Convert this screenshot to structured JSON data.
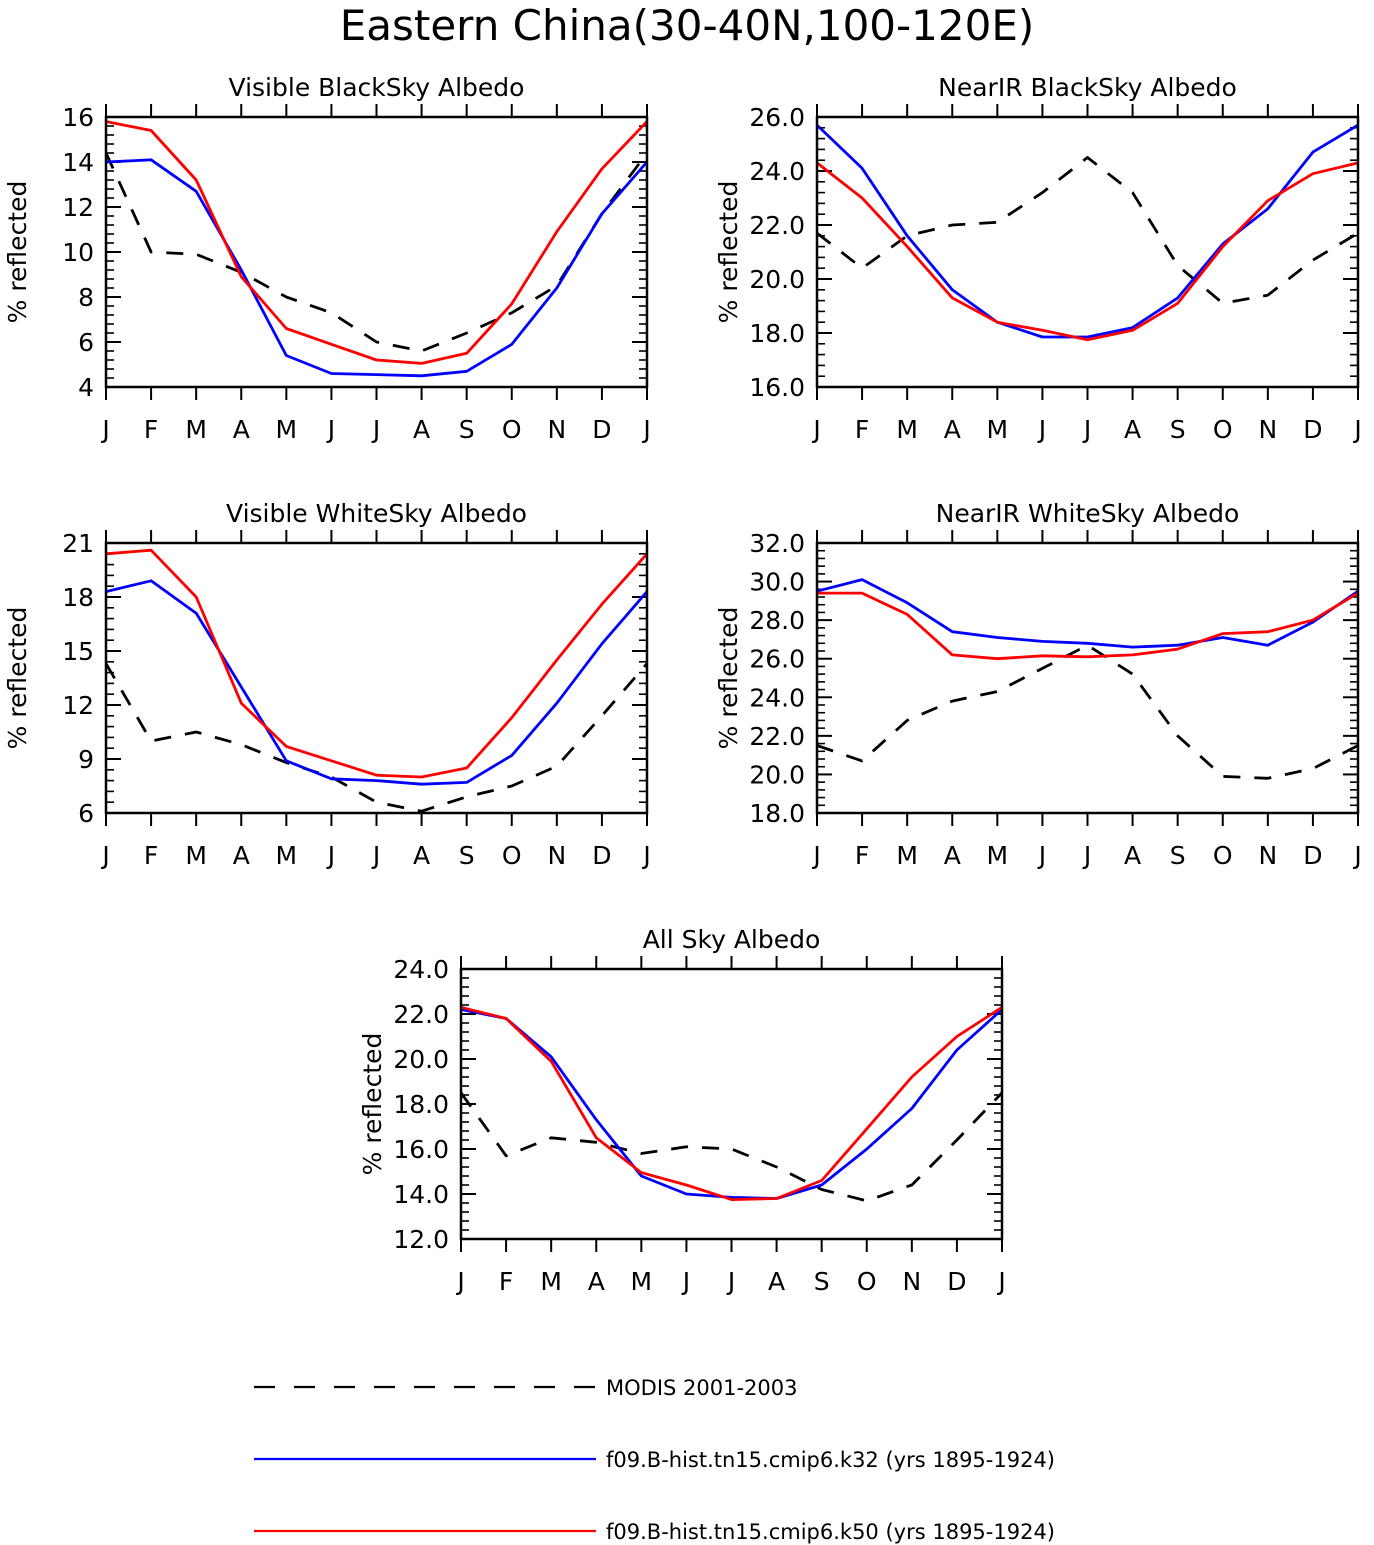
{
  "figure": {
    "title": "Eastern China(30-40N,100-120E)"
  },
  "months": [
    "J",
    "F",
    "M",
    "A",
    "M",
    "J",
    "J",
    "A",
    "S",
    "O",
    "N",
    "D",
    "J"
  ],
  "colors": {
    "modis": "#000000",
    "k32": "#0000ff",
    "k50": "#ff0000"
  },
  "legend": [
    {
      "key": "modis",
      "label": "MODIS 2001-2003",
      "style": "dashed"
    },
    {
      "key": "k32",
      "label": "f09.B-hist.tn15.cmip6.k32 (yrs 1895-1924)",
      "style": "solid"
    },
    {
      "key": "k50",
      "label": "f09.B-hist.tn15.cmip6.k50 (yrs 1895-1924)",
      "style": "solid"
    }
  ],
  "chart_data": [
    {
      "type": "line",
      "title": "Visible BlackSky Albedo",
      "ylabel": "% reflected",
      "ylim": [
        4,
        16
      ],
      "yticks": [
        4,
        6,
        8,
        10,
        12,
        14,
        16
      ],
      "ytick_labels": [
        "4",
        "6",
        "8",
        "10",
        "12",
        "14",
        "16"
      ],
      "series": [
        {
          "key": "modis",
          "values": [
            14.4,
            10.0,
            9.9,
            9.1,
            8.0,
            7.3,
            6.0,
            5.6,
            6.4,
            7.3,
            8.5,
            11.7,
            14.4
          ]
        },
        {
          "key": "k32",
          "values": [
            14.0,
            14.1,
            12.7,
            9.2,
            5.4,
            4.6,
            4.55,
            4.5,
            4.7,
            5.9,
            8.4,
            11.7,
            14.0
          ]
        },
        {
          "key": "k50",
          "values": [
            15.8,
            15.4,
            13.2,
            8.9,
            6.6,
            5.9,
            5.2,
            5.05,
            5.5,
            7.7,
            10.9,
            13.7,
            15.8
          ]
        }
      ]
    },
    {
      "type": "line",
      "title": "NearIR BlackSky Albedo",
      "ylabel": "% reflected",
      "ylim": [
        16,
        26
      ],
      "yticks": [
        16,
        18,
        20,
        22,
        24,
        26
      ],
      "ytick_labels": [
        "16.0",
        "18.0",
        "20.0",
        "22.0",
        "24.0",
        "26.0"
      ],
      "series": [
        {
          "key": "modis",
          "values": [
            21.7,
            20.4,
            21.6,
            22.0,
            22.1,
            23.2,
            24.5,
            23.2,
            20.5,
            19.1,
            19.4,
            20.7,
            21.7
          ]
        },
        {
          "key": "k32",
          "values": [
            25.7,
            24.1,
            21.6,
            19.6,
            18.4,
            17.85,
            17.85,
            18.2,
            19.3,
            21.3,
            22.6,
            24.7,
            25.7
          ]
        },
        {
          "key": "k50",
          "values": [
            24.3,
            23.0,
            21.2,
            19.3,
            18.4,
            18.1,
            17.75,
            18.1,
            19.1,
            21.2,
            22.9,
            23.9,
            24.3
          ]
        }
      ]
    },
    {
      "type": "line",
      "title": "Visible WhiteSky Albedo",
      "ylabel": "% reflected",
      "ylim": [
        6,
        21
      ],
      "yticks": [
        6,
        9,
        12,
        15,
        18,
        21
      ],
      "ytick_labels": [
        "6",
        "9",
        "12",
        "15",
        "18",
        "21"
      ],
      "series": [
        {
          "key": "modis",
          "values": [
            14.3,
            10.0,
            10.5,
            9.8,
            8.8,
            8.0,
            6.6,
            6.1,
            6.9,
            7.5,
            8.6,
            11.4,
            14.3
          ]
        },
        {
          "key": "k32",
          "values": [
            18.3,
            18.9,
            17.1,
            13.0,
            8.9,
            7.9,
            7.8,
            7.6,
            7.7,
            9.2,
            12.1,
            15.4,
            18.3
          ]
        },
        {
          "key": "k50",
          "values": [
            20.4,
            20.6,
            18.0,
            12.1,
            9.7,
            8.9,
            8.1,
            8.0,
            8.5,
            11.3,
            14.5,
            17.6,
            20.4
          ]
        }
      ]
    },
    {
      "type": "line",
      "title": "NearIR WhiteSky Albedo",
      "ylabel": "% reflected",
      "ylim": [
        18,
        32
      ],
      "yticks": [
        18,
        20,
        22,
        24,
        26,
        28,
        30,
        32
      ],
      "ytick_labels": [
        "18.0",
        "20.0",
        "22.0",
        "24.0",
        "26.0",
        "28.0",
        "30.0",
        "32.0"
      ],
      "series": [
        {
          "key": "modis",
          "values": [
            21.5,
            20.7,
            22.8,
            23.8,
            24.3,
            25.5,
            26.7,
            25.2,
            22.0,
            19.9,
            19.8,
            20.3,
            21.5
          ]
        },
        {
          "key": "k32",
          "values": [
            29.5,
            30.1,
            28.9,
            27.4,
            27.1,
            26.9,
            26.8,
            26.6,
            26.7,
            27.1,
            26.7,
            27.9,
            29.5
          ]
        },
        {
          "key": "k50",
          "values": [
            29.4,
            29.4,
            28.3,
            26.2,
            26.0,
            26.15,
            26.1,
            26.2,
            26.5,
            27.3,
            27.4,
            28.0,
            29.4
          ]
        }
      ]
    },
    {
      "type": "line",
      "title": "All Sky Albedo",
      "ylabel": "% reflected",
      "ylim": [
        12,
        24
      ],
      "yticks": [
        12,
        14,
        16,
        18,
        20,
        22,
        24
      ],
      "ytick_labels": [
        "12.0",
        "14.0",
        "16.0",
        "18.0",
        "20.0",
        "22.0",
        "24.0"
      ],
      "series": [
        {
          "key": "modis",
          "values": [
            18.5,
            15.7,
            16.5,
            16.3,
            15.8,
            16.1,
            16.0,
            15.2,
            14.2,
            13.7,
            14.4,
            16.4,
            18.5
          ]
        },
        {
          "key": "k32",
          "values": [
            22.2,
            21.8,
            20.1,
            17.3,
            14.8,
            14.0,
            13.85,
            13.8,
            14.4,
            16.0,
            17.8,
            20.4,
            22.2
          ]
        },
        {
          "key": "k50",
          "values": [
            22.3,
            21.8,
            19.9,
            16.5,
            14.95,
            14.4,
            13.75,
            13.8,
            14.6,
            16.9,
            19.2,
            21.0,
            22.3
          ]
        }
      ]
    }
  ]
}
